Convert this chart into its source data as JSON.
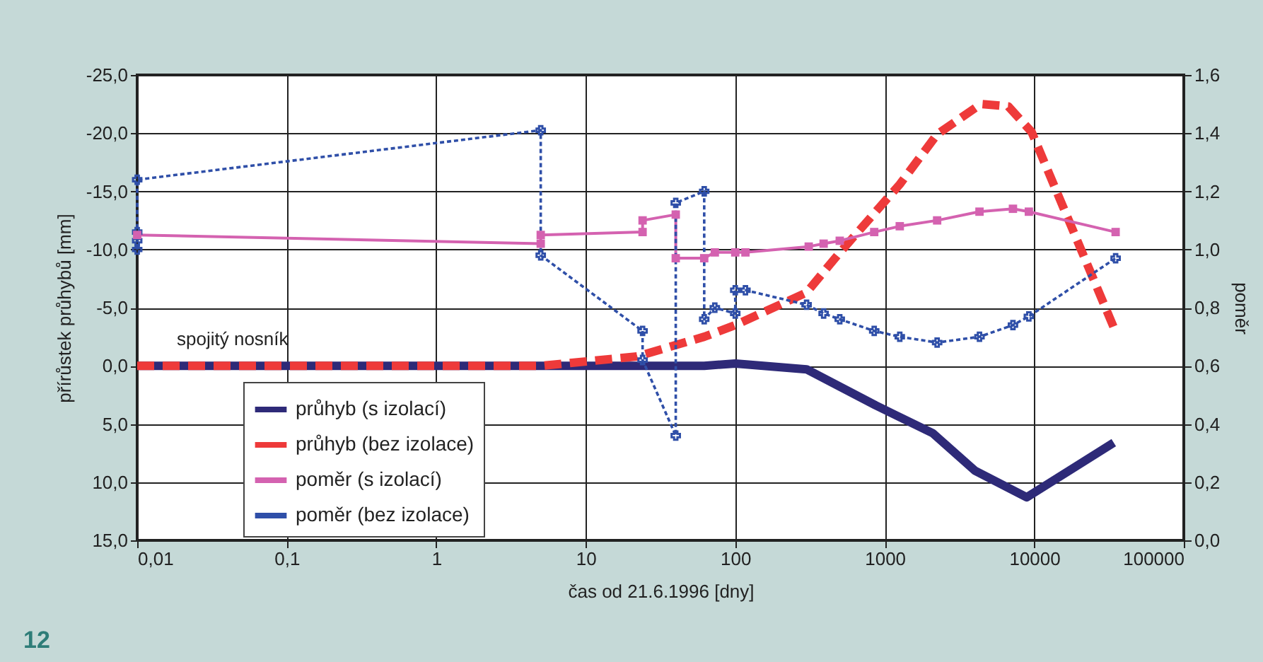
{
  "chart_data": {
    "type": "line",
    "xlabel": "čas od 21.6.1996 [dny]",
    "ylabel": "přírůstek průhybů [mm]",
    "y2label": "poměr",
    "log": "x",
    "grid": true,
    "legend": "bottom left",
    "xlim": [
      0.01,
      100000
    ],
    "xticks": [
      {
        "value": 0.01,
        "label": "0,01"
      },
      {
        "value": 0.1,
        "label": "0,1"
      },
      1,
      10,
      100,
      1000,
      10000,
      100000
    ],
    "ylim": [
      15,
      -25
    ],
    "yticks": [
      {
        "value": -25,
        "label": "-25,0"
      },
      {
        "value": -20,
        "label": "-20,0"
      },
      {
        "value": -15,
        "label": "-15,0"
      },
      {
        "value": -10,
        "label": "-10,0"
      },
      {
        "value": -5,
        "label": "-5,0"
      },
      {
        "value": 0,
        "label": "0,0"
      },
      {
        "value": 5,
        "label": "5,0"
      },
      {
        "value": 10,
        "label": "10,0"
      },
      {
        "value": 15,
        "label": "15,0"
      }
    ],
    "y2lim": [
      0,
      1.6
    ],
    "y2ticks": [
      {
        "value": 0,
        "label": "0,0"
      },
      {
        "value": 0.2,
        "label": "0,2"
      },
      {
        "value": 0.4,
        "label": "0,4"
      },
      {
        "value": 0.6,
        "label": "0,6"
      },
      {
        "value": 0.8,
        "label": "0,8"
      },
      {
        "value": 1.0,
        "label": "1,0"
      },
      {
        "value": 1.2,
        "label": "1,2"
      },
      {
        "value": 1.4,
        "label": "1,4"
      },
      {
        "value": 1.6,
        "label": "1,6"
      }
    ],
    "series": [
      {
        "name": "průhyb (s izolací)",
        "color": "#2e2a78",
        "line_style": "solid",
        "marker": "none",
        "x": [
          0.01,
          5,
          24,
          40,
          62,
          100,
          300,
          870,
          2100,
          4000,
          8900,
          34000
        ],
        "values": [
          0,
          0,
          0,
          0,
          0,
          -0.2,
          0.3,
          3.4,
          5.8,
          9.0,
          11.3,
          6.6
        ]
      },
      {
        "name": "průhyb (bez izolace)",
        "color": "#ee3a3a",
        "line_style": "dashed",
        "marker": "none",
        "x": [
          0.01,
          5,
          22,
          62,
          100,
          300,
          490,
          1260,
          2240,
          4400,
          6700,
          9600,
          34000
        ],
        "values": [
          0,
          0,
          -0.8,
          -2.5,
          -3.5,
          -6.3,
          -9.6,
          -15.6,
          -19.9,
          -22.5,
          -22.3,
          -20.1,
          -3.3
        ]
      },
      {
        "name": "poměr (s izolací)",
        "color": "#d462b0",
        "line_style": "solid",
        "marker": "square",
        "axis": "y2",
        "x": [
          0.01,
          5,
          5,
          24,
          24,
          40,
          40,
          62,
          73,
          100,
          117,
          310,
          390,
          500,
          850,
          1260,
          2240,
          4300,
          7200,
          9200,
          35000
        ],
        "values": [
          1.05,
          1.02,
          1.05,
          1.06,
          1.1,
          1.12,
          0.97,
          0.97,
          0.99,
          0.99,
          0.99,
          1.01,
          1.02,
          1.03,
          1.06,
          1.08,
          1.1,
          1.13,
          1.14,
          1.13,
          1.06
        ]
      },
      {
        "name": "poměr (bez izolace)",
        "color": "#2f4fa8",
        "line_style": "dotted",
        "marker": "cross",
        "axis": "y2",
        "x": [
          0.01,
          0.01,
          0.01,
          0.01,
          5,
          5,
          24,
          24,
          40,
          40,
          62,
          62,
          73,
          100,
          100,
          117,
          300,
          390,
          500,
          850,
          1260,
          2240,
          4300,
          7200,
          9200,
          35000
        ],
        "values": [
          1.0,
          1.03,
          1.06,
          1.24,
          1.41,
          0.98,
          0.72,
          0.62,
          0.36,
          1.16,
          1.2,
          0.76,
          0.8,
          0.78,
          0.86,
          0.86,
          0.81,
          0.78,
          0.76,
          0.72,
          0.7,
          0.68,
          0.7,
          0.74,
          0.77,
          0.97
        ]
      }
    ],
    "annotations": [
      "spojitý nosník",
      "12"
    ]
  }
}
